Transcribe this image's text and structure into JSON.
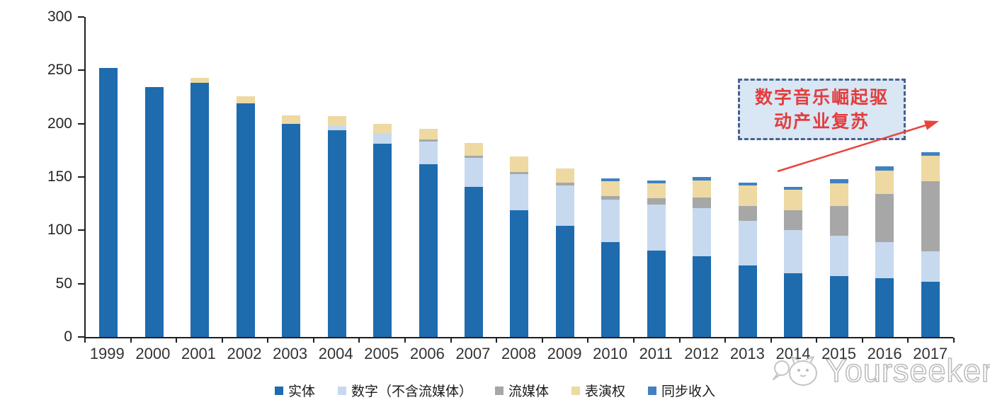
{
  "chart_data": {
    "type": "bar",
    "stacked": true,
    "title": "",
    "xlabel": "",
    "ylabel": "",
    "categories": [
      "1999",
      "2000",
      "2001",
      "2002",
      "2003",
      "2004",
      "2005",
      "2006",
      "2007",
      "2008",
      "2009",
      "2010",
      "2011",
      "2012",
      "2013",
      "2014",
      "2015",
      "2016",
      "2017"
    ],
    "series": [
      {
        "key": "physical",
        "name": "实体",
        "color": "#1E6BAE",
        "values": [
          252,
          234,
          238,
          219,
          200,
          194,
          181,
          162,
          141,
          119,
          104,
          89,
          81,
          76,
          67,
          60,
          57,
          55,
          52
        ]
      },
      {
        "key": "digital-excl-streaming",
        "name": "数字（不含流媒体）",
        "color": "#C6D9EF",
        "values": [
          0,
          0,
          0,
          0,
          0,
          4,
          10,
          21,
          27,
          34,
          38,
          40,
          43,
          45,
          42,
          40,
          38,
          34,
          28
        ]
      },
      {
        "key": "streaming",
        "name": "流媒体",
        "color": "#A7A7A7",
        "values": [
          0,
          0,
          0,
          0,
          0,
          0,
          0,
          2,
          2,
          2,
          3,
          3,
          6,
          10,
          14,
          19,
          28,
          45,
          66
        ]
      },
      {
        "key": "performance-rights",
        "name": "表演权",
        "color": "#EDD9A1",
        "values": [
          0,
          0,
          5,
          7,
          8,
          9,
          9,
          10,
          12,
          14,
          13,
          14,
          14,
          16,
          19,
          19,
          21,
          22,
          24
        ]
      },
      {
        "key": "sync-revenue",
        "name": "同步收入",
        "color": "#4181C1",
        "values": [
          0,
          0,
          0,
          0,
          0,
          0,
          0,
          0,
          0,
          0,
          0,
          3,
          3,
          3,
          3,
          3,
          4,
          4,
          3
        ]
      }
    ],
    "ylim": [
      0,
      300
    ],
    "yticks": [
      0,
      50,
      100,
      150,
      200,
      250,
      300
    ],
    "grid": false,
    "legend_position": "bottom"
  },
  "annotation": {
    "line1": "数字音乐崛起驱",
    "line2": "动产业复苏",
    "text_color": "#e23d3d",
    "box_fill": "#d9e6f4",
    "box_border": "#47618e",
    "arrow_color": "#e8453c"
  },
  "watermark": {
    "text": "Yourseeker"
  },
  "colors": {
    "axis": "#1f1f1f",
    "background": "#ffffff"
  }
}
